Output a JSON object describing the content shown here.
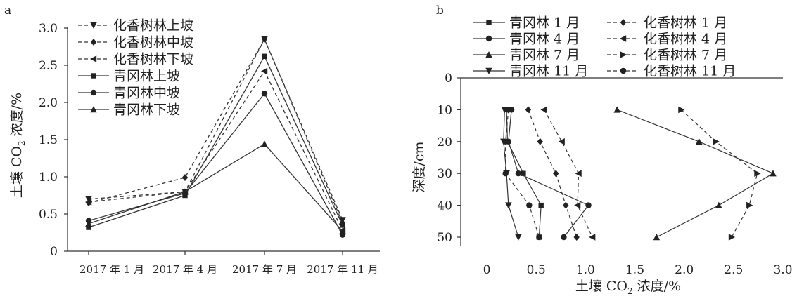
{
  "chart_data": [
    {
      "panel_label": "a",
      "type": "line",
      "categories": [
        "2017 年 1 月",
        "2017 年 4 月",
        "2017 年 7 月",
        "2017 年 11 月"
      ],
      "ylabel_parts": [
        "土壤 CO",
        "2",
        " 浓度/%"
      ],
      "xlabel": "",
      "ylim": [
        0,
        3.0
      ],
      "yticks": [
        "0",
        "0.5",
        "1.0",
        "1.5",
        "2.0",
        "2.5",
        "3.0"
      ],
      "legend_position": "top-left",
      "series": [
        {
          "name": "化香树林上坡",
          "values": [
            0.7,
            0.8,
            2.85,
            0.42
          ],
          "dash": true,
          "marker": "tri-down"
        },
        {
          "name": "化香树林中坡",
          "values": [
            0.65,
            0.99,
            2.85,
            0.38
          ],
          "dash": true,
          "marker": "diamond"
        },
        {
          "name": "化香树林下坡",
          "values": [
            0.66,
            0.8,
            2.42,
            0.28
          ],
          "dash": true,
          "marker": "tri-left"
        },
        {
          "name": "青冈林上坡",
          "values": [
            0.32,
            0.75,
            2.62,
            0.35
          ],
          "dash": false,
          "marker": "square"
        },
        {
          "name": "青冈林中坡",
          "values": [
            0.41,
            0.78,
            2.12,
            0.22
          ],
          "dash": false,
          "marker": "circle"
        },
        {
          "name": "青冈林下坡",
          "values": [
            0.37,
            0.8,
            1.44,
            0.27
          ],
          "dash": false,
          "marker": "tri-up"
        }
      ]
    },
    {
      "panel_label": "b",
      "type": "line",
      "xlabel_parts": [
        "土壤 CO",
        "2",
        " 浓度/%"
      ],
      "ylabel": "深度/cm",
      "xlim": [
        -0.3,
        3.0
      ],
      "xticks": [
        "0",
        "0.5",
        "1.0",
        "1.5",
        "2.0",
        "2.5",
        "3.0"
      ],
      "ylim": [
        0,
        50
      ],
      "yticks": [
        "0",
        "10",
        "20",
        "30",
        "40",
        "50"
      ],
      "y_inverted": true,
      "legend_position": "top",
      "depths": [
        10,
        20,
        30,
        40,
        50
      ],
      "series": [
        {
          "name": "青冈林 1 月",
          "values": [
            0.2,
            0.21,
            0.37,
            0.55,
            0.53
          ],
          "dash": false,
          "marker": "square"
        },
        {
          "name": "化香树林 1 月",
          "values": [
            0.42,
            0.54,
            0.7,
            0.8,
            0.91
          ],
          "dash": true,
          "marker": "diamond"
        },
        {
          "name": "青冈林 4 月",
          "values": [
            0.25,
            0.22,
            0.32,
            1.03,
            0.78
          ],
          "dash": false,
          "marker": "circle"
        },
        {
          "name": "化香树林 4 月",
          "values": [
            0.58,
            0.76,
            0.93,
            0.92,
            1.07
          ],
          "dash": true,
          "marker": "tri-left"
        },
        {
          "name": "青冈林 7 月",
          "values": [
            1.32,
            2.15,
            2.9,
            2.35,
            1.72
          ],
          "dash": false,
          "marker": "tri-up"
        },
        {
          "name": "化香树林 7 月",
          "values": [
            1.97,
            2.32,
            2.74,
            2.66,
            2.48
          ],
          "dash": true,
          "marker": "tri-right"
        },
        {
          "name": "青冈林 11 月",
          "values": [
            0.18,
            0.17,
            0.2,
            0.22,
            0.32
          ],
          "dash": false,
          "marker": "tri-down"
        },
        {
          "name": "化香树林 11 月",
          "values": [
            0.22,
            0.19,
            0.19,
            0.43,
            0.53
          ],
          "dash": true,
          "marker": "circle"
        }
      ]
    }
  ]
}
